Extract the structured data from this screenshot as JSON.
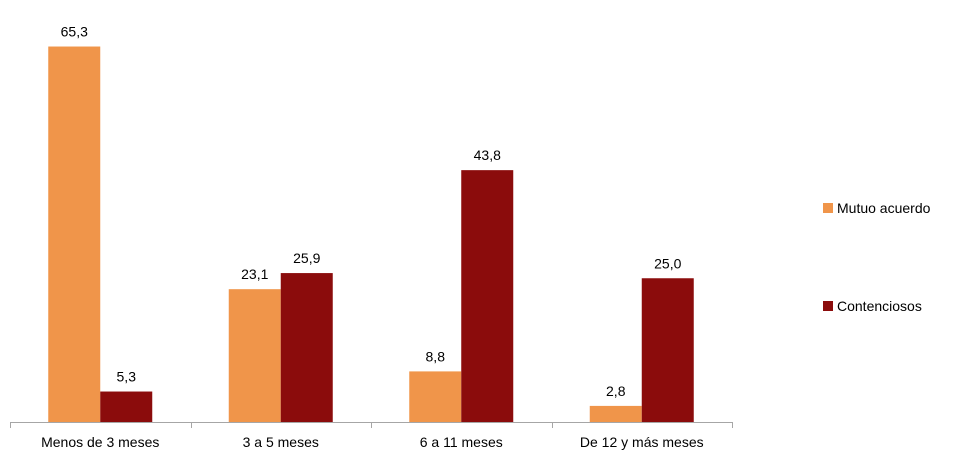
{
  "chart_data": {
    "type": "bar",
    "categories": [
      "Menos de 3 meses",
      "3 a 5 meses",
      "6 a 11 meses",
      "De 12 y más meses"
    ],
    "series": [
      {
        "name": "Mutuo acuerdo",
        "values": [
          65.3,
          23.1,
          8.8,
          2.8
        ],
        "labels": [
          "65,3",
          "23,1",
          "8,8",
          "2,8"
        ],
        "color": "#F0954A"
      },
      {
        "name": "Contenciosos",
        "values": [
          5.3,
          25.9,
          43.8,
          25.0
        ],
        "labels": [
          "5,3",
          "25,9",
          "43,8",
          "25,0"
        ],
        "color": "#8B0C0C"
      }
    ],
    "title": "",
    "xlabel": "",
    "ylabel": "",
    "ylim": [
      0,
      70
    ],
    "grid": false,
    "legend_position": "right",
    "axis_color": "#A6A6A6"
  }
}
